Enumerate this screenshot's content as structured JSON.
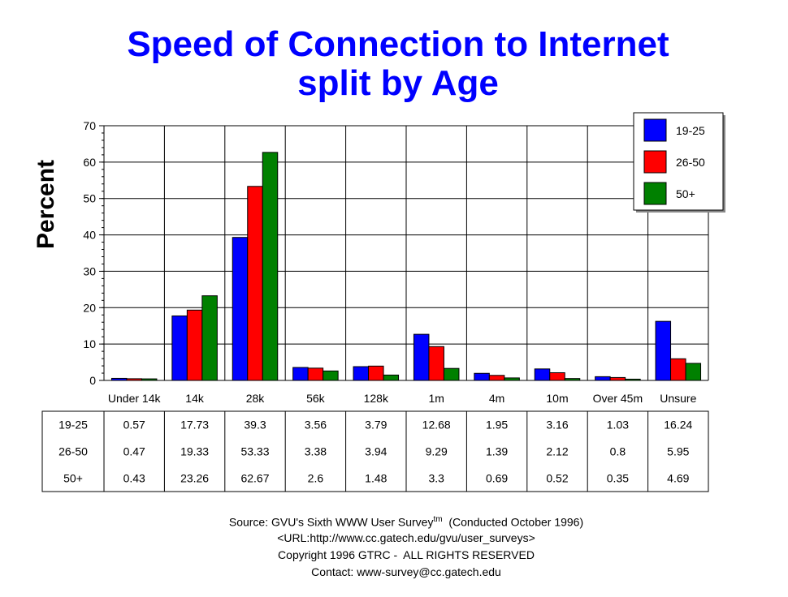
{
  "title_line1": "Speed of Connection to Internet",
  "title_line2": "split by Age",
  "footer": {
    "source_prefix": "Source: GVU's Sixth WWW User Survey",
    "source_sup": "tm",
    "source_suffix": "  (Conducted October 1996)",
    "url": "<URL:http://www.cc.gatech.edu/gvu/user_surveys>",
    "copyright": "Copyright 1996 GTRC -  ALL RIGHTS RESERVED",
    "contact": "Contact: www-survey@cc.gatech.edu"
  },
  "chart_data": {
    "type": "bar",
    "title": "Speed of Connection to Internet split by Age",
    "xlabel": "",
    "ylabel": "Percent",
    "ylim": [
      0,
      70
    ],
    "yticks": [
      0,
      10,
      20,
      30,
      40,
      50,
      60,
      70
    ],
    "grid": true,
    "legend_position": "top-right",
    "categories": [
      "Under 14k",
      "14k",
      "28k",
      "56k",
      "128k",
      "1m",
      "4m",
      "10m",
      "Over 45m",
      "Unsure"
    ],
    "series": [
      {
        "name": "19-25",
        "color": "#0000ff",
        "values": [
          0.57,
          17.73,
          39.3,
          3.56,
          3.79,
          12.68,
          1.95,
          3.16,
          1.03,
          16.24
        ]
      },
      {
        "name": "26-50",
        "color": "#ff0000",
        "values": [
          0.47,
          19.33,
          53.33,
          3.38,
          3.94,
          9.29,
          1.39,
          2.12,
          0.8,
          5.95
        ]
      },
      {
        "name": "50+",
        "color": "#008000",
        "values": [
          0.43,
          23.26,
          62.67,
          2.6,
          1.48,
          3.3,
          0.69,
          0.52,
          0.35,
          4.69
        ]
      }
    ],
    "table_labels": [
      [
        "0.57",
        "17.73",
        "39.3",
        "3.56",
        "3.79",
        "12.68",
        "1.95",
        "3.16",
        "1.03",
        "16.24"
      ],
      [
        "0.47",
        "19.33",
        "53.33",
        "3.38",
        "3.94",
        "9.29",
        "1.39",
        "2.12",
        "0.8",
        "5.95"
      ],
      [
        "0.43",
        "23.26",
        "62.67",
        "2.6",
        "1.48",
        "3.3",
        "0.69",
        "0.52",
        "0.35",
        "4.69"
      ]
    ]
  }
}
